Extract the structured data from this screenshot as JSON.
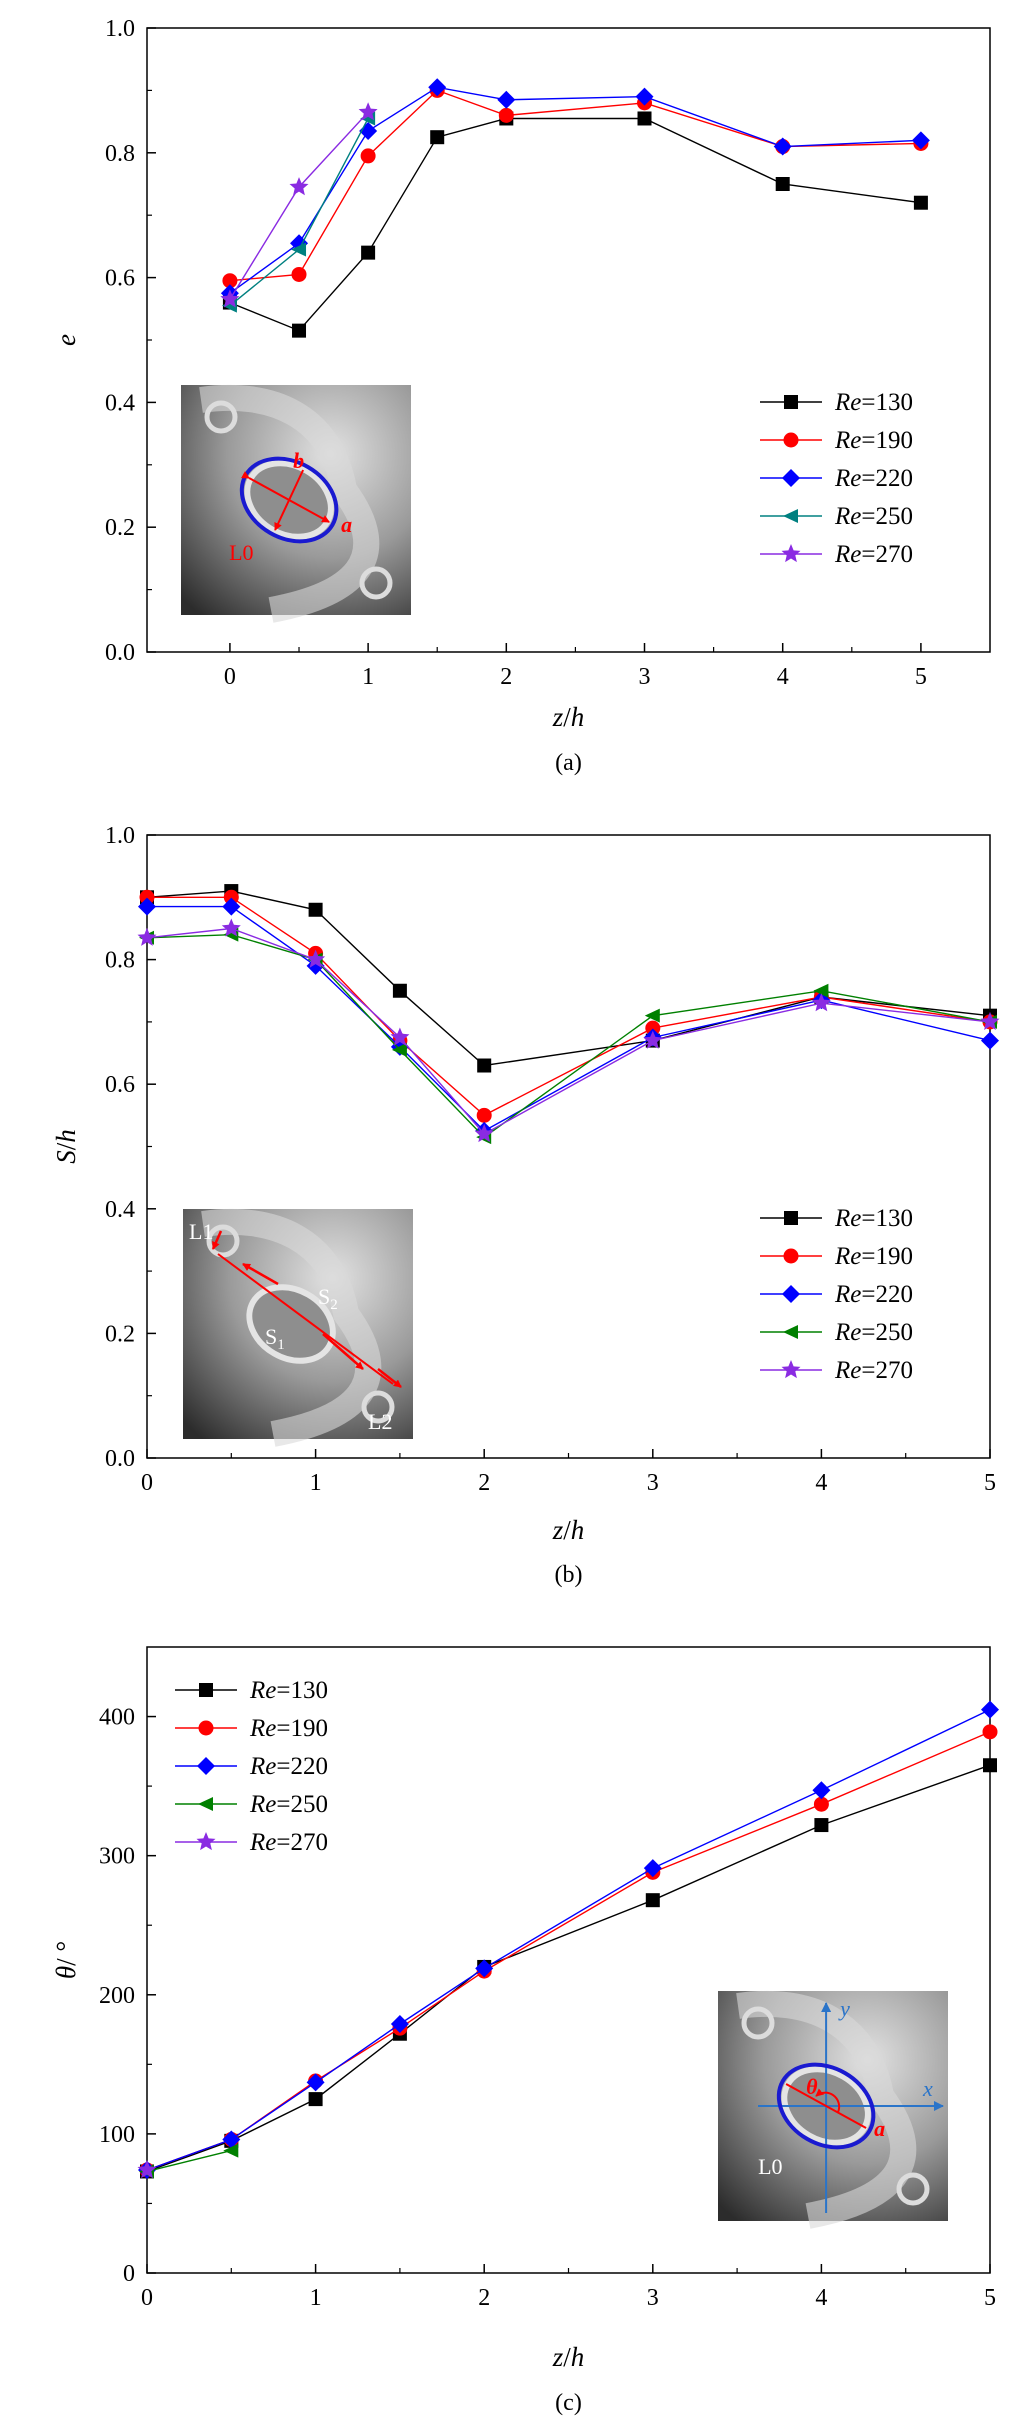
{
  "colors": {
    "Re=130": "#000000",
    "Re=190": "#ff0000",
    "Re=220": "#0000ff",
    "Re=250": "#008080",
    "Re=250_b": "#008000",
    "Re=270": "#8a2be2",
    "axis": "#000000",
    "inset_dark": "#3a3a3a",
    "inset_light": "#c8c8c8",
    "inset_annot_red": "#ff0000",
    "inset_annot_blue": "#2a74c9",
    "ellipse_blue": "#1a1ad0"
  },
  "chart_data": [
    {
      "type": "line",
      "panel_caption": "(a)",
      "ylabel": "e",
      "xlabel": "z/h",
      "xlim": [
        -0.6,
        5.5
      ],
      "ylim": [
        0.0,
        1.0
      ],
      "xticks": [
        0,
        1,
        2,
        3,
        4,
        5
      ],
      "yticks": [
        0.0,
        0.2,
        0.4,
        0.6,
        0.8,
        1.0
      ],
      "ytick_labels": [
        "0.0",
        "0.2",
        "0.4",
        "0.6",
        "0.8",
        "1.0"
      ],
      "xtick_labels": [
        "0",
        "1",
        "2",
        "3",
        "4",
        "5"
      ],
      "legend_position": "right",
      "series": [
        {
          "name": "Re=130",
          "label_italic": "Re",
          "label_rest": "=130",
          "marker": "square",
          "x": [
            0,
            0.5,
            1,
            1.5,
            2,
            3,
            4,
            5
          ],
          "y": [
            0.56,
            0.515,
            0.64,
            0.825,
            0.855,
            0.855,
            0.75,
            0.72
          ]
        },
        {
          "name": "Re=190",
          "label_italic": "Re",
          "label_rest": "=190",
          "marker": "circle",
          "x": [
            0,
            0.5,
            1,
            1.5,
            2,
            3,
            4,
            5
          ],
          "y": [
            0.595,
            0.605,
            0.795,
            0.9,
            0.86,
            0.88,
            0.81,
            0.815
          ]
        },
        {
          "name": "Re=220",
          "label_italic": "Re",
          "label_rest": "=220",
          "marker": "diamond",
          "x": [
            0,
            0.5,
            1,
            1.5,
            2,
            3,
            4,
            5
          ],
          "y": [
            0.575,
            0.655,
            0.835,
            0.905,
            0.885,
            0.89,
            0.81,
            0.82
          ]
        },
        {
          "name": "Re=250",
          "label_italic": "Re",
          "label_rest": "=250",
          "marker": "triangle-left",
          "x": [
            0,
            0.5,
            1
          ],
          "y": [
            0.555,
            0.645,
            0.855
          ]
        },
        {
          "name": "Re=270",
          "label_italic": "Re",
          "label_rest": "=270",
          "marker": "star",
          "x": [
            0,
            0.5,
            1
          ],
          "y": [
            0.565,
            0.745,
            0.865
          ]
        }
      ],
      "inset_labels": [
        "b",
        "a",
        "L0"
      ]
    },
    {
      "type": "line",
      "panel_caption": "(b)",
      "ylabel": "S/h",
      "xlabel": "z/h",
      "xlim": [
        0,
        5
      ],
      "ylim": [
        0.0,
        1.0
      ],
      "xticks": [
        0,
        1,
        2,
        3,
        4,
        5
      ],
      "yticks": [
        0.0,
        0.2,
        0.4,
        0.6,
        0.8,
        1.0
      ],
      "ytick_labels": [
        "0.0",
        "0.2",
        "0.4",
        "0.6",
        "0.8",
        "1.0"
      ],
      "xtick_labels": [
        "0",
        "1",
        "2",
        "3",
        "4",
        "5"
      ],
      "legend_position": "right",
      "series": [
        {
          "name": "Re=130",
          "label_italic": "Re",
          "label_rest": "=130",
          "marker": "square",
          "x": [
            0,
            0.5,
            1,
            1.5,
            2,
            3,
            4,
            5
          ],
          "y": [
            0.9,
            0.91,
            0.88,
            0.75,
            0.63,
            0.67,
            0.74,
            0.71
          ]
        },
        {
          "name": "Re=190",
          "label_italic": "Re",
          "label_rest": "=190",
          "marker": "circle",
          "x": [
            0,
            0.5,
            1,
            1.5,
            2,
            3,
            4,
            5
          ],
          "y": [
            0.9,
            0.9,
            0.81,
            0.67,
            0.55,
            0.69,
            0.74,
            0.7
          ]
        },
        {
          "name": "Re=220",
          "label_italic": "Re",
          "label_rest": "=220",
          "marker": "diamond",
          "x": [
            0,
            0.5,
            1,
            1.5,
            2,
            3,
            4,
            5
          ],
          "y": [
            0.885,
            0.885,
            0.79,
            0.66,
            0.525,
            0.675,
            0.735,
            0.67
          ]
        },
        {
          "name": "Re=250",
          "label_italic": "Re",
          "label_rest": "=250",
          "marker": "triangle-left",
          "x": [
            0,
            0.5,
            1,
            1.5,
            2,
            3,
            4,
            5
          ],
          "y": [
            0.835,
            0.84,
            0.8,
            0.655,
            0.515,
            0.71,
            0.75,
            0.7
          ]
        },
        {
          "name": "Re=270",
          "label_italic": "Re",
          "label_rest": "=270",
          "marker": "star",
          "x": [
            0,
            0.5,
            1,
            1.5,
            2,
            3,
            4,
            5
          ],
          "y": [
            0.835,
            0.85,
            0.8,
            0.675,
            0.52,
            0.67,
            0.73,
            0.7
          ]
        }
      ],
      "inset_labels": [
        "L1",
        "S",
        "2",
        "S",
        "1",
        "L2"
      ]
    },
    {
      "type": "line",
      "panel_caption": "(c)",
      "ylabel": "θ/ °",
      "xlabel": "z/h",
      "xlim": [
        0,
        5
      ],
      "ylim": [
        0,
        450
      ],
      "xticks": [
        0,
        1,
        2,
        3,
        4,
        5
      ],
      "yticks": [
        0,
        100,
        200,
        300,
        400
      ],
      "ytick_labels": [
        "0",
        "100",
        "200",
        "300",
        "400"
      ],
      "xtick_labels": [
        "0",
        "1",
        "2",
        "3",
        "4",
        "5"
      ],
      "legend_position": "top-left",
      "series": [
        {
          "name": "Re=130",
          "label_italic": "Re",
          "label_rest": "=130",
          "marker": "square",
          "x": [
            0,
            0.5,
            1,
            1.5,
            2,
            3,
            4,
            5
          ],
          "y": [
            73,
            95,
            125,
            172,
            220,
            268,
            322,
            365
          ]
        },
        {
          "name": "Re=190",
          "label_italic": "Re",
          "label_rest": "=190",
          "marker": "circle",
          "x": [
            0,
            0.5,
            1,
            1.5,
            2,
            3,
            4,
            5
          ],
          "y": [
            74,
            96,
            138,
            176,
            217,
            288,
            337,
            389
          ]
        },
        {
          "name": "Re=220",
          "label_italic": "Re",
          "label_rest": "=220",
          "marker": "diamond",
          "x": [
            0,
            0.5,
            1,
            1.5,
            2,
            3,
            4,
            5
          ],
          "y": [
            74,
            96,
            137,
            179,
            219,
            291,
            347,
            405
          ]
        },
        {
          "name": "Re=250",
          "label_italic": "Re",
          "label_rest": "=250",
          "marker": "triangle-left",
          "x": [
            0,
            0.5
          ],
          "y": [
            73,
            88
          ]
        },
        {
          "name": "Re=270",
          "label_italic": "Re",
          "label_rest": "=270",
          "marker": "star",
          "x": [
            0
          ],
          "y": [
            74
          ]
        }
      ],
      "inset_labels": [
        "y",
        "x",
        "θ",
        "a",
        "L0"
      ]
    }
  ]
}
